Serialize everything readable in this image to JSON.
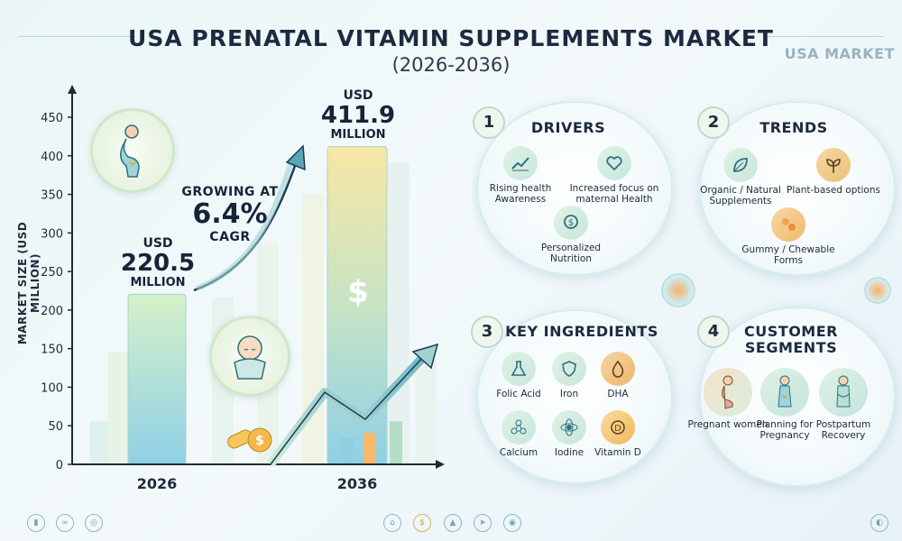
{
  "header": {
    "title": "USA PRENATAL VITAMIN SUPPLEMENTS MARKET",
    "subtitle": "(2026-2036)",
    "badge": "USA MARKET"
  },
  "chart_data": {
    "type": "bar",
    "ylabel": "MARKET SIZE (USD MILLION)",
    "ylim": [
      0,
      450
    ],
    "yticks": [
      0,
      50,
      100,
      150,
      200,
      250,
      300,
      350,
      400,
      450
    ],
    "categories": [
      "2026",
      "2036"
    ],
    "values": [
      220.5,
      411.9
    ],
    "labels": [
      {
        "currency": "USD",
        "value": "220.5",
        "unit": "MILLION"
      },
      {
        "currency": "USD",
        "value": "411.9",
        "unit": "MILLION"
      }
    ],
    "growth": {
      "line1": "GROWING AT",
      "value": "6.4%",
      "line3": "CAGR"
    },
    "colors": {
      "bar2026": "#c6ead8",
      "bar2036": "#f6e2a8",
      "axis": "#1d2b3a"
    }
  },
  "panels": {
    "drivers": {
      "num": "1",
      "title": "DRIVERS",
      "items": [
        {
          "label": "Rising health Awareness",
          "icon": "chart-up-icon"
        },
        {
          "label": "Increased focus on maternal Health",
          "icon": "heart-hands-icon"
        },
        {
          "label": "Personalized Nutrition",
          "icon": "coin-hand-icon"
        }
      ]
    },
    "trends": {
      "num": "2",
      "title": "TRENDS",
      "items": [
        {
          "label": "Organic / Natural Supplements",
          "icon": "leaf-icon"
        },
        {
          "label": "Plant-based options",
          "icon": "sprout-icon"
        },
        {
          "label": "Gummy / Chewable Forms",
          "icon": "gummy-icon"
        }
      ]
    },
    "ingredients": {
      "num": "3",
      "title": "KEY INGREDIENTS",
      "items": [
        {
          "label": "Folic Acid",
          "icon": "flask-icon"
        },
        {
          "label": "Iron",
          "icon": "shield-icon"
        },
        {
          "label": "DHA",
          "icon": "drop-icon"
        },
        {
          "label": "Calcium",
          "icon": "molecule-icon"
        },
        {
          "label": "Iodine",
          "icon": "atom-icon"
        },
        {
          "label": "Vitamin D",
          "icon": "vitamin-d-icon"
        }
      ]
    },
    "segments": {
      "num": "4",
      "title_line1": "CUSTOMER",
      "title_line2": "SEGMENTS",
      "items": [
        {
          "label": "Pregnant women",
          "icon": "pregnant-woman-icon"
        },
        {
          "label": "Planning for Pregnancy",
          "icon": "planning-woman-icon"
        },
        {
          "label": "Postpartum Recovery",
          "icon": "mother-icon"
        }
      ]
    }
  },
  "icons": {
    "dollar": "$"
  }
}
